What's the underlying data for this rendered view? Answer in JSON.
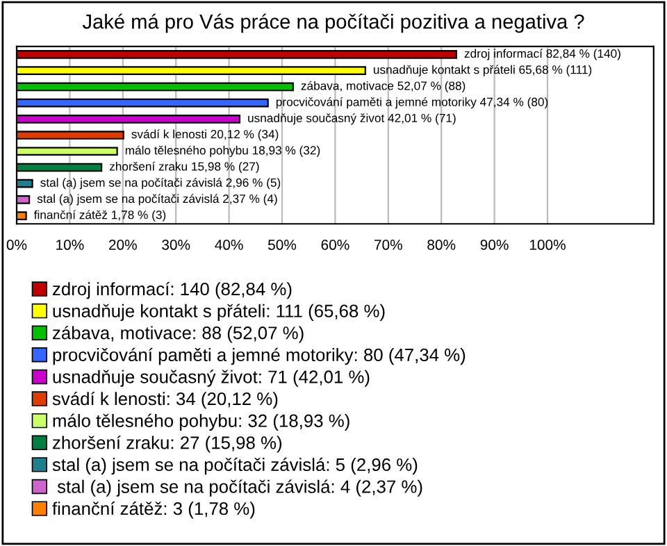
{
  "chart_data": {
    "type": "bar",
    "orientation": "horizontal",
    "title": "Jaké má pro Vás práce na počítači pozitiva a negativa ?",
    "categories": [
      null,
      null,
      null,
      null,
      null,
      null,
      null,
      null,
      null,
      null,
      null
    ],
    "series": [
      {
        "name": "zdroj informací: 140 (82,84 %)",
        "color": "#c00000",
        "values": [
          82.84,
          null,
          null,
          null,
          null,
          null,
          null,
          null,
          null,
          null,
          null
        ],
        "value_labels": [
          "zdroj informací 82,84 % (140)",
          null,
          null,
          null,
          null,
          null,
          null,
          null,
          null,
          null,
          null
        ]
      },
      {
        "name": "usnadňuje kontakt s přáteli: 111 (65,68 %)",
        "color": "#ffff00",
        "values": [
          null,
          65.68,
          null,
          null,
          null,
          null,
          null,
          null,
          null,
          null,
          null
        ],
        "value_labels": [
          null,
          "usnadňuje kontakt s přáteli 65,68 % (111)",
          null,
          null,
          null,
          null,
          null,
          null,
          null,
          null,
          null
        ]
      },
      {
        "name": "zábava, motivace: 88 (52,07 %)",
        "color": "#00c000",
        "values": [
          null,
          null,
          52.07,
          null,
          null,
          null,
          null,
          null,
          null,
          null,
          null
        ],
        "value_labels": [
          null,
          null,
          "zábava, motivace 52,07 % (88)",
          null,
          null,
          null,
          null,
          null,
          null,
          null,
          null
        ]
      },
      {
        "name": "procvičování paměti a jemné motoriky: 80 (47,34 %)",
        "color": "#3366ff",
        "values": [
          null,
          null,
          null,
          47.34,
          null,
          null,
          null,
          null,
          null,
          null,
          null
        ],
        "value_labels": [
          null,
          null,
          null,
          "procvičování paměti a jemné motoriky 47,34 % (80)",
          null,
          null,
          null,
          null,
          null,
          null,
          null
        ]
      },
      {
        "name": "usnadňuje současný život: 71 (42,01 %)",
        "color": "#cc00cc",
        "values": [
          null,
          null,
          null,
          null,
          42.01,
          null,
          null,
          null,
          null,
          null,
          null
        ],
        "value_labels": [
          null,
          null,
          null,
          null,
          "usnadňuje současný život 42,01 % (71)",
          null,
          null,
          null,
          null,
          null,
          null
        ]
      },
      {
        "name": "svádí k lenosti: 34 (20,12 %)",
        "color": "#e03c00",
        "values": [
          null,
          null,
          null,
          null,
          null,
          20.12,
          null,
          null,
          null,
          null,
          null
        ],
        "value_labels": [
          null,
          null,
          null,
          null,
          null,
          "svádí k lenosti 20,12 % (34)",
          null,
          null,
          null,
          null,
          null
        ]
      },
      {
        "name": "málo tělesného pohybu: 32 (18,93 %)",
        "color": "#ccff66",
        "values": [
          null,
          null,
          null,
          null,
          null,
          null,
          18.93,
          null,
          null,
          null,
          null
        ],
        "value_labels": [
          null,
          null,
          null,
          null,
          null,
          null,
          "málo tělesného pohybu 18,93 % (32)",
          null,
          null,
          null,
          null
        ]
      },
      {
        "name": "zhoršení zraku: 27 (15,98 %)",
        "color": "#008040",
        "values": [
          null,
          null,
          null,
          null,
          null,
          null,
          null,
          15.98,
          null,
          null,
          null
        ],
        "value_labels": [
          null,
          null,
          null,
          null,
          null,
          null,
          null,
          "zhoršení zraku 15,98 % (27)",
          null,
          null,
          null
        ]
      },
      {
        "name": "stal (a) jsem se na počítači závislá: 5 (2,96 %)",
        "color": "#1f7f8f",
        "values": [
          null,
          null,
          null,
          null,
          null,
          null,
          null,
          null,
          2.96,
          null,
          null
        ],
        "value_labels": [
          null,
          null,
          null,
          null,
          null,
          null,
          null,
          null,
          "stal (a) jsem se na počítači závislá 2,96 % (5)",
          null,
          null
        ]
      },
      {
        "name": " stal (a) jsem se na počítači závislá: 4 (2,37 %)",
        "color": "#cc66cc",
        "values": [
          null,
          null,
          null,
          null,
          null,
          null,
          null,
          null,
          null,
          2.37,
          null
        ],
        "value_labels": [
          null,
          null,
          null,
          null,
          null,
          null,
          null,
          null,
          null,
          "stal (a) jsem se na počítači závislá 2,37 % (4)",
          null
        ]
      },
      {
        "name": "finanční zátěž: 3 (1,78 %)",
        "color": "#ff8000",
        "values": [
          null,
          null,
          null,
          null,
          null,
          null,
          null,
          null,
          null,
          null,
          1.78
        ],
        "value_labels": [
          null,
          null,
          null,
          null,
          null,
          null,
          null,
          null,
          null,
          null,
          "finanční zátěž 1,78 % (3)"
        ]
      }
    ],
    "xlim": [
      0,
      120
    ],
    "xticks": [
      {
        "value": 0,
        "label": "0%"
      },
      {
        "value": 10,
        "label": "10%"
      },
      {
        "value": 20,
        "label": "20%"
      },
      {
        "value": 30,
        "label": "30%"
      },
      {
        "value": 40,
        "label": "40%"
      },
      {
        "value": 50,
        "label": "50%"
      },
      {
        "value": 60,
        "label": "60%"
      },
      {
        "value": 70,
        "label": "70%"
      },
      {
        "value": 80,
        "label": "80%"
      },
      {
        "value": 90,
        "label": "90%"
      },
      {
        "value": 100,
        "label": "100%"
      }
    ],
    "grid": "x",
    "legend": "bottom",
    "tick_labels": "x"
  }
}
